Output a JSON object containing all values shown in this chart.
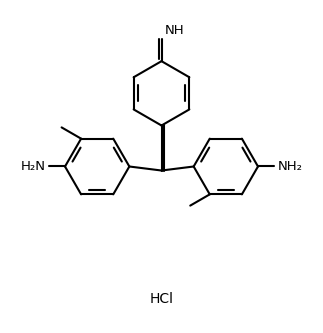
{
  "background_color": "#ffffff",
  "line_color": "#000000",
  "text_color": "#000000",
  "line_width": 1.5,
  "font_size": 9.5,
  "hcl_font_size": 10,
  "figsize": [
    3.23,
    3.33
  ],
  "dpi": 100,
  "xlim": [
    -2.0,
    2.0
  ],
  "ylim": [
    -1.6,
    2.3
  ]
}
